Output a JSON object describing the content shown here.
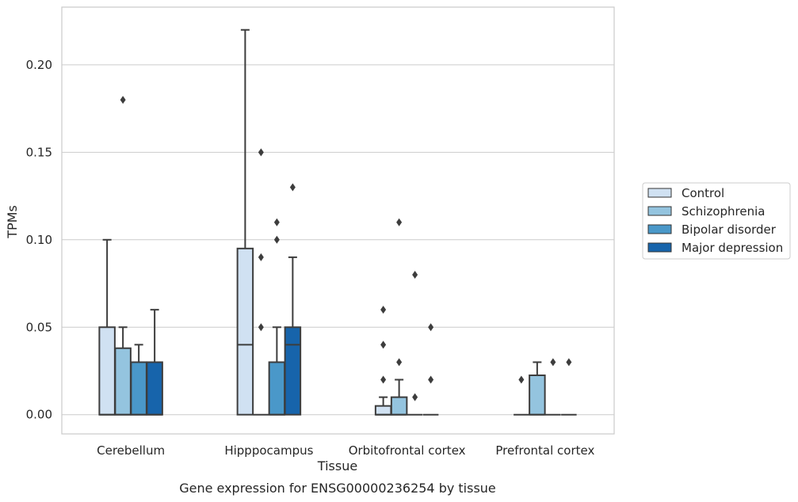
{
  "chart_data": {
    "type": "boxplot",
    "caption": "Gene expression for ENSG00000236254 by tissue",
    "xlabel": "Tissue",
    "ylabel": "TPMs",
    "ylim": [
      -0.011,
      0.233
    ],
    "yticks": [
      "0.00",
      "0.05",
      "0.10",
      "0.15",
      "0.20"
    ],
    "ytick_values": [
      0.0,
      0.05,
      0.1,
      0.15,
      0.2
    ],
    "grid": true,
    "legend_position": "right",
    "categories": [
      "Cerebellum",
      "Hipppocampus",
      "Orbitofrontal cortex",
      "Prefrontal cortex"
    ],
    "series": [
      {
        "name": "Control",
        "color": "#d0e1f2",
        "boxes": [
          {
            "q1": 0.0,
            "median": 0.0,
            "q3": 0.05,
            "whislo": 0.0,
            "whishi": 0.1,
            "fliers": []
          },
          {
            "q1": 0.0,
            "median": 0.04,
            "q3": 0.095,
            "whislo": 0.0,
            "whishi": 0.22,
            "fliers": []
          },
          {
            "q1": 0.0,
            "median": 0.0,
            "q3": 0.005,
            "whislo": 0.0,
            "whishi": 0.01,
            "fliers": [
              0.02,
              0.04,
              0.06
            ]
          },
          {
            "q1": 0.0,
            "median": 0.0,
            "q3": 0.0,
            "whislo": 0.0,
            "whishi": 0.0,
            "fliers": [
              0.02
            ]
          }
        ]
      },
      {
        "name": "Schizophrenia",
        "color": "#94c4df",
        "boxes": [
          {
            "q1": 0.0,
            "median": 0.0,
            "q3": 0.038,
            "whislo": 0.0,
            "whishi": 0.05,
            "fliers": [
              0.18
            ]
          },
          {
            "q1": 0.0,
            "median": 0.0,
            "q3": 0.0,
            "whislo": 0.0,
            "whishi": 0.0,
            "fliers": [
              0.05,
              0.09,
              0.15
            ]
          },
          {
            "q1": 0.0,
            "median": 0.0,
            "q3": 0.01,
            "whislo": 0.0,
            "whishi": 0.02,
            "fliers": [
              0.03,
              0.11
            ]
          },
          {
            "q1": 0.0,
            "median": 0.0,
            "q3": 0.0225,
            "whislo": 0.0,
            "whishi": 0.03,
            "fliers": []
          }
        ]
      },
      {
        "name": "Bipolar disorder",
        "color": "#4a98c9",
        "boxes": [
          {
            "q1": 0.0,
            "median": 0.0,
            "q3": 0.03,
            "whislo": 0.0,
            "whishi": 0.04,
            "fliers": []
          },
          {
            "q1": 0.0,
            "median": 0.0,
            "q3": 0.03,
            "whislo": 0.0,
            "whishi": 0.05,
            "fliers": [
              0.1,
              0.11
            ]
          },
          {
            "q1": 0.0,
            "median": 0.0,
            "q3": 0.0,
            "whislo": 0.0,
            "whishi": 0.0,
            "fliers": [
              0.01,
              0.08
            ]
          },
          {
            "q1": 0.0,
            "median": 0.0,
            "q3": 0.0,
            "whislo": 0.0,
            "whishi": 0.0,
            "fliers": [
              0.03
            ]
          }
        ]
      },
      {
        "name": "Major depression",
        "color": "#1764ab",
        "boxes": [
          {
            "q1": 0.0,
            "median": 0.0,
            "q3": 0.03,
            "whislo": 0.0,
            "whishi": 0.06,
            "fliers": []
          },
          {
            "q1": 0.0,
            "median": 0.04,
            "q3": 0.05,
            "whislo": 0.0,
            "whishi": 0.09,
            "fliers": [
              0.13
            ]
          },
          {
            "q1": 0.0,
            "median": 0.0,
            "q3": 0.0,
            "whislo": 0.0,
            "whishi": 0.0,
            "fliers": [
              0.02,
              0.05
            ]
          },
          {
            "q1": 0.0,
            "median": 0.0,
            "q3": 0.0,
            "whislo": 0.0,
            "whishi": 0.0,
            "fliers": [
              0.03
            ]
          }
        ]
      }
    ]
  }
}
